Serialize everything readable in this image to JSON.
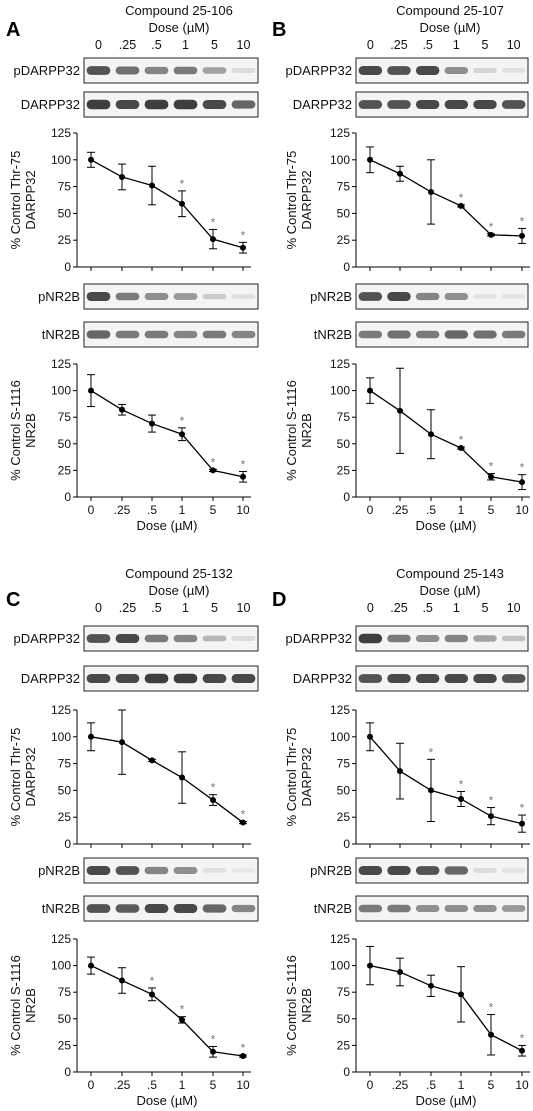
{
  "colors": {
    "line": "#000000",
    "asterisk": "#7a7a7a",
    "blot_bg": "#f4f4f4",
    "band": "#2a2a2a"
  },
  "panels": [
    {
      "letter": "A",
      "compound": "Compound 25-106",
      "dose_title": "Dose (µM)",
      "dose_labels": [
        "0",
        ".25",
        ".5",
        "1",
        "5",
        "10"
      ],
      "blots": [
        {
          "label": "pDARPP32",
          "intensity": [
            0.8,
            0.65,
            0.55,
            0.6,
            0.4,
            0.12
          ]
        },
        {
          "label": "DARPP32",
          "intensity": [
            0.9,
            0.85,
            0.9,
            0.9,
            0.85,
            0.7
          ]
        },
        {
          "label": "pNR2B",
          "intensity": [
            0.85,
            0.6,
            0.5,
            0.45,
            0.2,
            0.1
          ]
        },
        {
          "label": "tNR2B",
          "intensity": [
            0.7,
            0.6,
            0.6,
            0.55,
            0.6,
            0.55
          ]
        }
      ]
    },
    {
      "letter": "B",
      "compound": "Compound 25-107",
      "dose_title": "Dose (µM)",
      "dose_labels": [
        "0",
        ".25",
        ".5",
        "1",
        "5",
        "10"
      ],
      "blots": [
        {
          "label": "pDARPP32",
          "intensity": [
            0.85,
            0.8,
            0.85,
            0.5,
            0.15,
            0.1
          ]
        },
        {
          "label": "DARPP32",
          "intensity": [
            0.8,
            0.8,
            0.85,
            0.85,
            0.85,
            0.8
          ]
        },
        {
          "label": "pNR2B",
          "intensity": [
            0.8,
            0.85,
            0.55,
            0.5,
            0.08,
            0.08
          ]
        },
        {
          "label": "tNR2B",
          "intensity": [
            0.6,
            0.65,
            0.6,
            0.7,
            0.65,
            0.6
          ]
        }
      ]
    },
    {
      "letter": "C",
      "compound": "Compound 25-132",
      "dose_title": "Dose (µM)",
      "dose_labels": [
        "0",
        ".25",
        ".5",
        "1",
        "5",
        "10"
      ],
      "blots": [
        {
          "label": "pDARPP32",
          "intensity": [
            0.8,
            0.85,
            0.6,
            0.55,
            0.3,
            0.12
          ]
        },
        {
          "label": "DARPP32",
          "intensity": [
            0.85,
            0.85,
            0.9,
            0.9,
            0.85,
            0.85
          ]
        },
        {
          "label": "pNR2B",
          "intensity": [
            0.85,
            0.8,
            0.55,
            0.5,
            0.1,
            0.05
          ]
        },
        {
          "label": "tNR2B",
          "intensity": [
            0.8,
            0.75,
            0.85,
            0.85,
            0.7,
            0.55
          ]
        }
      ]
    },
    {
      "letter": "D",
      "compound": "Compound 25-143",
      "dose_title": "Dose (µM)",
      "dose_labels": [
        "0",
        ".25",
        ".5",
        "1",
        "5",
        "10"
      ],
      "blots": [
        {
          "label": "pDARPP32",
          "intensity": [
            0.9,
            0.6,
            0.5,
            0.55,
            0.4,
            0.25
          ]
        },
        {
          "label": "DARPP32",
          "intensity": [
            0.8,
            0.85,
            0.85,
            0.85,
            0.85,
            0.8
          ]
        },
        {
          "label": "pNR2B",
          "intensity": [
            0.85,
            0.85,
            0.8,
            0.7,
            0.12,
            0.08
          ]
        },
        {
          "label": "tNR2B",
          "intensity": [
            0.6,
            0.6,
            0.5,
            0.5,
            0.5,
            0.45
          ]
        }
      ]
    }
  ],
  "chart_data": [
    {
      "panel": "A",
      "type": "line",
      "ylabel": [
        "% Control Thr-75",
        "DARPP32"
      ],
      "xlabel": "",
      "x": [
        "0",
        ".25",
        ".5",
        "1",
        "5",
        "10"
      ],
      "ylim": [
        0,
        125
      ],
      "yticks": [
        0,
        25,
        50,
        75,
        100,
        125
      ],
      "values": [
        100,
        84,
        76,
        59,
        26,
        18
      ],
      "errors": [
        7,
        12,
        18,
        12,
        9,
        5
      ],
      "significant": [
        false,
        false,
        false,
        true,
        true,
        true
      ]
    },
    {
      "panel": "A",
      "type": "line",
      "ylabel": [
        "% Control S-1116",
        "NR2B"
      ],
      "xlabel": "Dose (µM)",
      "x": [
        "0",
        ".25",
        ".5",
        "1",
        "5",
        "10"
      ],
      "ylim": [
        0,
        125
      ],
      "yticks": [
        0,
        25,
        50,
        75,
        100,
        125
      ],
      "values": [
        100,
        82,
        69,
        59,
        25,
        19
      ],
      "errors": [
        15,
        5,
        8,
        6,
        1,
        5
      ],
      "significant": [
        false,
        false,
        false,
        true,
        true,
        true
      ]
    },
    {
      "panel": "B",
      "type": "line",
      "ylabel": [
        "% Control Thr-75",
        "DARPP32"
      ],
      "xlabel": "",
      "x": [
        "0",
        ".25",
        ".5",
        "1",
        "5",
        "10"
      ],
      "ylim": [
        0,
        125
      ],
      "yticks": [
        0,
        25,
        50,
        75,
        100,
        125
      ],
      "values": [
        100,
        87,
        70,
        57,
        30,
        29
      ],
      "errors": [
        12,
        7,
        30,
        1,
        1,
        7
      ],
      "significant": [
        false,
        false,
        false,
        true,
        true,
        true
      ]
    },
    {
      "panel": "B",
      "type": "line",
      "ylabel": [
        "% Control S-1116",
        "NR2B"
      ],
      "xlabel": "Dose (µM)",
      "x": [
        "0",
        ".25",
        ".5",
        "1",
        "5",
        "10"
      ],
      "ylim": [
        0,
        125
      ],
      "yticks": [
        0,
        25,
        50,
        75,
        100,
        125
      ],
      "values": [
        100,
        81,
        59,
        46,
        19,
        14
      ],
      "errors": [
        12,
        40,
        23,
        1,
        3,
        7
      ],
      "significant": [
        false,
        false,
        false,
        true,
        true,
        true
      ]
    },
    {
      "panel": "C",
      "type": "line",
      "ylabel": [
        "% Control Thr-75",
        "DARPP32"
      ],
      "xlabel": "",
      "x": [
        "0",
        ".25",
        ".5",
        "1",
        "5",
        "10"
      ],
      "ylim": [
        0,
        125
      ],
      "yticks": [
        0,
        25,
        50,
        75,
        100,
        125
      ],
      "values": [
        100,
        95,
        78,
        62,
        41,
        20
      ],
      "errors": [
        13,
        30,
        1,
        24,
        5,
        1
      ],
      "significant": [
        false,
        false,
        false,
        false,
        true,
        true
      ]
    },
    {
      "panel": "C",
      "type": "line",
      "ylabel": [
        "% Control S-1116",
        "NR2B"
      ],
      "xlabel": "Dose (µM)",
      "x": [
        "0",
        ".25",
        ".5",
        "1",
        "5",
        "10"
      ],
      "ylim": [
        0,
        125
      ],
      "yticks": [
        0,
        25,
        50,
        75,
        100,
        125
      ],
      "values": [
        100,
        86,
        73,
        49,
        19,
        15
      ],
      "errors": [
        8,
        12,
        6,
        3,
        5,
        1
      ],
      "significant": [
        false,
        false,
        true,
        true,
        true,
        true
      ]
    },
    {
      "panel": "D",
      "type": "line",
      "ylabel": [
        "% Control Thr-75",
        "DARPP32"
      ],
      "xlabel": "",
      "x": [
        "0",
        ".25",
        ".5",
        "1",
        "5",
        "10"
      ],
      "ylim": [
        0,
        125
      ],
      "yticks": [
        0,
        25,
        50,
        75,
        100,
        125
      ],
      "values": [
        100,
        68,
        50,
        42,
        26,
        19
      ],
      "errors": [
        13,
        26,
        29,
        7,
        8,
        8
      ],
      "significant": [
        false,
        false,
        true,
        true,
        true,
        true
      ]
    },
    {
      "panel": "D",
      "type": "line",
      "ylabel": [
        "% Control S-1116",
        "NR2B"
      ],
      "xlabel": "Dose (µM)",
      "x": [
        "0",
        ".25",
        ".5",
        "1",
        "5",
        "10"
      ],
      "ylim": [
        0,
        125
      ],
      "yticks": [
        0,
        25,
        50,
        75,
        100,
        125
      ],
      "values": [
        100,
        94,
        81,
        73,
        35,
        20
      ],
      "errors": [
        18,
        13,
        10,
        26,
        19,
        5
      ],
      "significant": [
        false,
        false,
        false,
        false,
        true,
        true
      ]
    }
  ]
}
